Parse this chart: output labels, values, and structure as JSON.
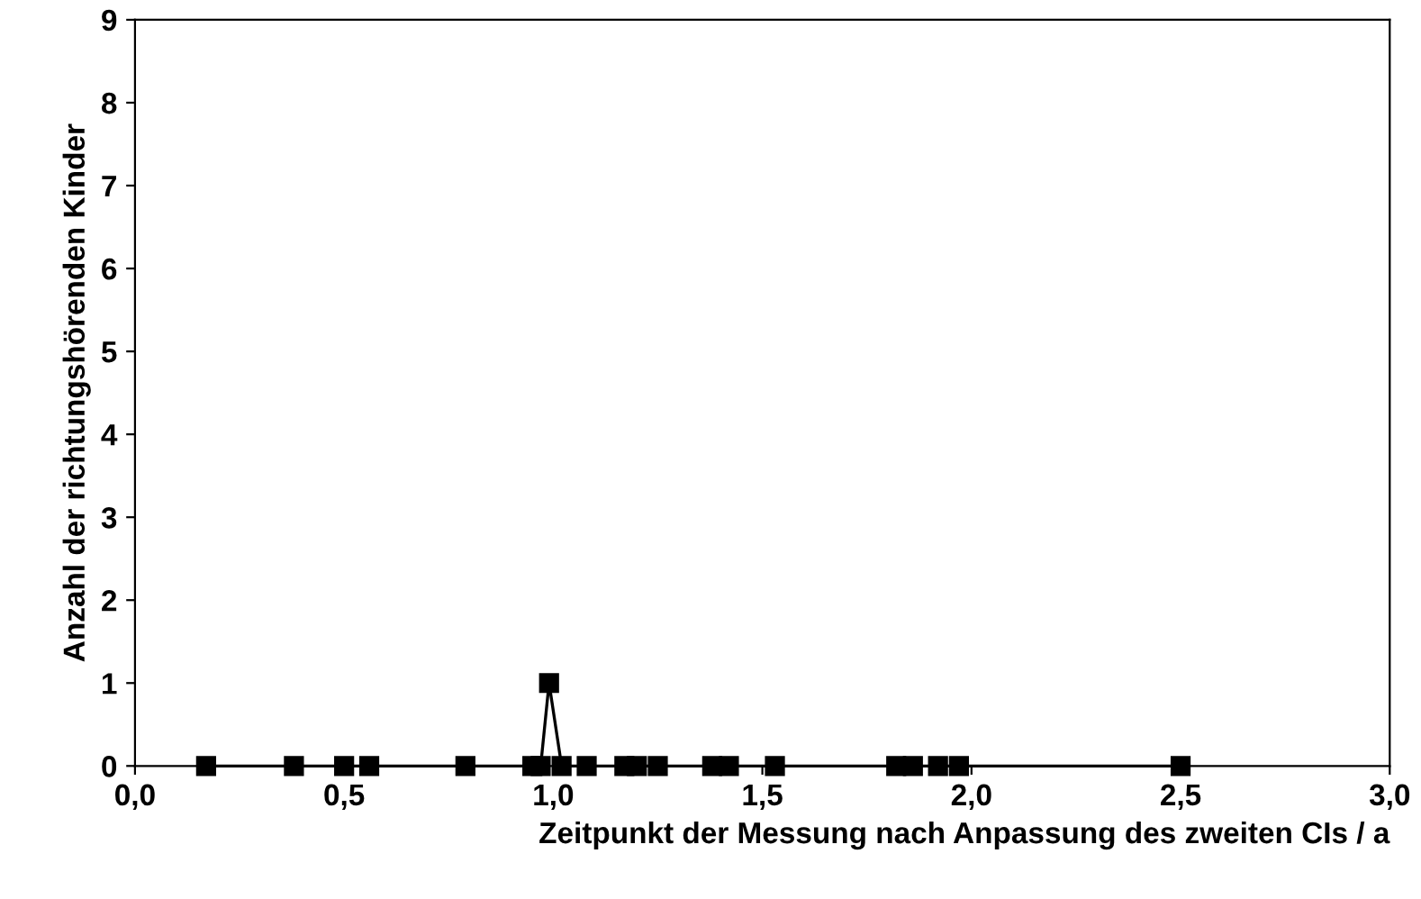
{
  "chart_data": {
    "type": "line",
    "xlabel": "Zeitpunkt der Messung nach Anpassung des zweiten CIs / a",
    "ylabel": "Anzahl der richtungshörenden Kinder",
    "x": [
      0.17,
      0.38,
      0.5,
      0.56,
      0.79,
      0.95,
      0.97,
      0.99,
      1.02,
      1.08,
      1.17,
      1.2,
      1.25,
      1.38,
      1.42,
      1.53,
      1.82,
      1.86,
      1.92,
      1.97,
      2.5
    ],
    "series": [
      {
        "color": "#000000",
        "values": [
          0,
          0,
          0,
          0,
          0,
          0,
          0,
          1,
          0,
          0,
          0,
          0,
          0,
          0,
          0,
          0,
          0,
          0,
          0,
          0,
          0
        ]
      }
    ],
    "xlim": [
      0,
      3
    ],
    "ylim": [
      0,
      9
    ],
    "xticks": [
      {
        "value": 0,
        "label": "0,0"
      },
      {
        "value": 0.5,
        "label": "0,5"
      },
      {
        "value": 1,
        "label": "1,0"
      },
      {
        "value": 1.5,
        "label": "1,5"
      },
      {
        "value": 2,
        "label": "2,0"
      },
      {
        "value": 2.5,
        "label": "2,5"
      },
      {
        "value": 3,
        "label": "3,0"
      }
    ],
    "yticks": [
      0,
      1,
      2,
      3,
      4,
      5,
      6,
      7,
      8,
      9
    ],
    "marker": "square",
    "line_style": "solid",
    "grid": false,
    "legend": false
  }
}
